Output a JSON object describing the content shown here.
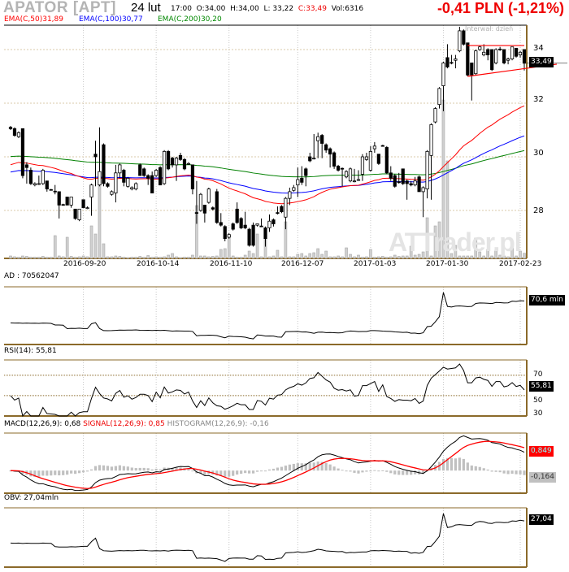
{
  "header": {
    "ticker": "APATOR [APT]",
    "date": "24 lut",
    "time": "17:00",
    "open": "O:34,00",
    "high": "H:34,00",
    "low": "L: 33,22",
    "close": "C:33,49",
    "volume": "Vol:6316",
    "change": "-0,41 PLN (-1,21%)",
    "interval": "Interwał: dzień"
  },
  "legend": {
    "ema50": "EMA(C,50)31,89",
    "ema100": "EMA(C,100)30,77",
    "ema200": "EMA(C,200)30,20"
  },
  "colors": {
    "ema50": "#ff0000",
    "ema100": "#0000ff",
    "ema200": "#008000",
    "border": "#8b6a2a",
    "grid": "#d8c8a8",
    "volume": "#d0d0d0"
  },
  "watermark": "ATTrader.pl",
  "chart_data": {
    "type": "candlestick",
    "title": "APATOR [APT]",
    "y_ticks": [
      "34",
      "32",
      "30",
      "28"
    ],
    "y_tick_values": [
      34,
      32,
      30,
      28
    ],
    "x_ticks": [
      "2016-09-20",
      "2016-10-14",
      "2016-11-10",
      "2016-12-07",
      "2017-01-03",
      "2017-01-30",
      "2017-02-23"
    ],
    "x_tick_indices": [
      18,
      36,
      54,
      71,
      89,
      107,
      126
    ],
    "last_price_label": "33,49",
    "last_price": 33.49,
    "ohlc": [
      [
        31.1,
        31.15,
        31.0,
        31.05
      ],
      [
        31.05,
        31.1,
        30.75,
        30.8
      ],
      [
        30.75,
        30.95,
        30.7,
        30.9
      ],
      [
        31.05,
        31.05,
        29.2,
        29.3
      ],
      [
        29.7,
        29.8,
        29.0,
        29.6
      ],
      [
        29.5,
        29.6,
        28.95,
        29.0
      ],
      [
        28.95,
        29.05,
        28.9,
        29.0
      ],
      [
        29.0,
        29.3,
        28.95,
        29.0
      ],
      [
        29.0,
        29.55,
        28.95,
        29.5
      ],
      [
        29.1,
        29.1,
        28.7,
        28.8
      ],
      [
        28.78,
        28.8,
        28.75,
        28.75
      ],
      [
        28.72,
        28.95,
        28.6,
        28.7
      ],
      [
        28.7,
        28.7,
        27.7,
        28.2
      ],
      [
        28.22,
        28.25,
        28.2,
        28.2
      ],
      [
        28.5,
        28.5,
        28.2,
        28.2
      ],
      [
        28.2,
        28.5,
        28.1,
        28.5
      ],
      [
        28.05,
        28.05,
        27.65,
        27.7
      ],
      [
        27.65,
        28.05,
        27.6,
        28.05
      ],
      [
        28.4,
        28.4,
        28.1,
        28.1
      ],
      [
        28.1,
        28.15,
        28.05,
        28.1
      ],
      [
        28.5,
        29.0,
        27.8,
        28.95
      ],
      [
        30.1,
        30.6,
        28.9,
        30.0
      ],
      [
        28.95,
        31.1,
        28.9,
        29.45
      ],
      [
        30.45,
        30.5,
        28.9,
        29.0
      ],
      [
        29.0,
        29.05,
        28.85,
        28.9
      ],
      [
        28.6,
        28.75,
        28.55,
        28.7
      ],
      [
        28.65,
        29.7,
        28.3,
        29.4
      ],
      [
        29.4,
        29.75,
        29.2,
        29.7
      ],
      [
        29.5,
        29.55,
        28.9,
        29.05
      ],
      [
        28.9,
        29.25,
        28.85,
        29.2
      ],
      [
        28.8,
        28.9,
        28.75,
        28.85
      ],
      [
        28.8,
        29.05,
        28.75,
        29.0
      ],
      [
        29.7,
        29.75,
        29.3,
        29.3
      ],
      [
        29.55,
        29.6,
        29.25,
        29.3
      ],
      [
        29.3,
        29.35,
        28.95,
        29.2
      ],
      [
        29.3,
        29.45,
        28.65,
        28.65
      ],
      [
        29.3,
        29.55,
        29.25,
        29.5
      ],
      [
        29.6,
        29.65,
        28.95,
        28.95
      ],
      [
        29.0,
        30.25,
        28.95,
        30.2
      ],
      [
        30.2,
        30.25,
        29.5,
        29.55
      ],
      [
        29.95,
        30.0,
        29.6,
        29.7
      ],
      [
        29.7,
        30.0,
        29.1,
        29.95
      ],
      [
        30.05,
        30.15,
        29.85,
        29.9
      ],
      [
        29.9,
        29.95,
        29.5,
        29.55
      ],
      [
        29.75,
        29.8,
        29.7,
        29.75
      ],
      [
        29.7,
        29.7,
        28.6,
        28.8
      ],
      [
        27.92,
        29.1,
        27.5,
        27.9
      ],
      [
        28.0,
        28.65,
        27.95,
        28.6
      ],
      [
        28.2,
        28.2,
        27.55,
        27.9
      ],
      [
        28.3,
        28.85,
        28.25,
        28.8
      ],
      [
        28.1,
        28.15,
        28.0,
        28.05
      ],
      [
        28.7,
        28.8,
        27.5,
        27.55
      ],
      [
        27.55,
        27.9,
        27.4,
        27.45
      ],
      [
        27.4,
        27.45,
        26.85,
        26.95
      ],
      [
        27.0,
        27.15,
        26.95,
        27.1
      ],
      [
        27.5,
        27.55,
        27.25,
        27.3
      ],
      [
        28.05,
        28.3,
        27.5,
        27.55
      ],
      [
        27.7,
        27.75,
        27.3,
        27.35
      ],
      [
        27.45,
        27.95,
        27.3,
        27.35
      ],
      [
        27.3,
        27.35,
        26.65,
        26.7
      ],
      [
        27.45,
        27.55,
        26.65,
        26.7
      ],
      [
        27.45,
        27.5,
        27.4,
        27.5
      ],
      [
        27.42,
        27.7,
        27.4,
        27.4
      ],
      [
        27.35,
        27.4,
        26.65,
        26.95
      ],
      [
        27.35,
        27.85,
        27.2,
        27.6
      ],
      [
        27.65,
        27.7,
        27.4,
        27.5
      ],
      [
        27.92,
        28.15,
        27.85,
        27.9
      ],
      [
        28.15,
        28.2,
        27.9,
        27.95
      ],
      [
        27.75,
        28.5,
        27.3,
        28.45
      ],
      [
        28.45,
        28.85,
        28.2,
        28.7
      ],
      [
        28.75,
        28.95,
        28.7,
        28.85
      ],
      [
        28.95,
        29.6,
        28.5,
        29.15
      ],
      [
        29.2,
        29.65,
        28.95,
        29.05
      ],
      [
        29.55,
        29.6,
        28.9,
        29.3
      ],
      [
        30.0,
        30.15,
        29.8,
        29.85
      ],
      [
        29.95,
        30.85,
        29.9,
        29.95
      ],
      [
        30.6,
        30.9,
        29.95,
        30.75
      ],
      [
        30.8,
        30.85,
        29.95,
        30.5
      ],
      [
        30.45,
        30.5,
        30.15,
        30.25
      ],
      [
        30.3,
        30.35,
        29.6,
        30.1
      ],
      [
        30.15,
        30.2,
        29.55,
        29.65
      ],
      [
        29.65,
        29.7,
        29.45,
        29.5
      ],
      [
        29.57,
        29.6,
        28.9,
        29.55
      ],
      [
        29.25,
        29.5,
        29.2,
        29.45
      ],
      [
        29.1,
        29.6,
        29.05,
        29.55
      ],
      [
        29.1,
        29.55,
        29.05,
        29.1
      ],
      [
        29.15,
        29.5,
        29.1,
        29.15
      ],
      [
        29.35,
        30.1,
        29.1,
        30.0
      ],
      [
        29.9,
        30.15,
        29.85,
        30.0
      ],
      [
        29.5,
        30.4,
        29.45,
        30.2
      ],
      [
        30.3,
        30.55,
        30.15,
        30.4
      ],
      [
        30.1,
        30.1,
        29.7,
        29.75
      ],
      [
        30.42,
        30.45,
        30.4,
        30.4
      ],
      [
        30.35,
        30.4,
        29.35,
        29.4
      ],
      [
        29.4,
        29.65,
        29.1,
        29.2
      ],
      [
        29.3,
        29.35,
        28.85,
        28.9
      ],
      [
        29.07,
        29.4,
        29.0,
        29.05
      ],
      [
        29.55,
        29.55,
        28.95,
        29.0
      ],
      [
        29.1,
        29.15,
        28.4,
        29.0
      ],
      [
        29.0,
        29.1,
        28.9,
        28.95
      ],
      [
        28.95,
        29.25,
        28.9,
        29.1
      ],
      [
        29.25,
        29.3,
        28.7,
        28.7
      ],
      [
        28.7,
        28.9,
        27.75,
        28.85
      ],
      [
        28.8,
        30.25,
        28.45,
        30.2
      ],
      [
        30.05,
        31.25,
        28.4,
        31.2
      ],
      [
        31.3,
        31.85,
        31.25,
        31.8
      ],
      [
        31.95,
        32.6,
        31.8,
        32.55
      ],
      [
        32.65,
        33.55,
        31.7,
        33.5
      ],
      [
        33.7,
        34.2,
        33.3,
        33.35
      ],
      [
        33.52,
        33.8,
        33.45,
        33.5
      ],
      [
        33.6,
        33.8,
        33.3,
        33.65
      ],
      [
        33.95,
        34.85,
        33.9,
        34.7
      ],
      [
        34.7,
        34.75,
        34.15,
        34.2
      ],
      [
        34.25,
        34.25,
        33.0,
        33.05
      ],
      [
        33.5,
        33.5,
        32.1,
        33.05
      ],
      [
        33.1,
        34.0,
        33.05,
        33.95
      ],
      [
        34.0,
        34.15,
        33.95,
        34.1
      ],
      [
        33.8,
        34.2,
        33.75,
        33.9
      ],
      [
        34.0,
        34.05,
        33.6,
        33.8
      ],
      [
        34.0,
        34.0,
        33.2,
        33.25
      ],
      [
        33.5,
        34.05,
        33.45,
        34.0
      ],
      [
        34.02,
        34.1,
        33.95,
        34.0
      ],
      [
        34.0,
        34.0,
        33.45,
        33.5
      ],
      [
        33.6,
        33.7,
        33.45,
        33.65
      ],
      [
        33.65,
        34.1,
        33.6,
        34.1
      ],
      [
        34.05,
        34.05,
        33.7,
        33.75
      ],
      [
        33.8,
        33.95,
        33.7,
        33.9
      ],
      [
        34.0,
        34.0,
        33.22,
        33.49
      ]
    ],
    "volume": [
      3000,
      2000,
      1500,
      3000,
      2500,
      1500,
      1500,
      1500,
      2500,
      1500,
      1500,
      28000,
      3000,
      2000,
      26000,
      2500,
      1500,
      2000,
      3000,
      2000,
      40000,
      30000,
      90000,
      18000,
      2000,
      2000,
      3000,
      2500,
      1500,
      1000,
      1500,
      1500,
      2500,
      1500,
      3500,
      1500,
      2000,
      1500,
      2000,
      4000,
      6000,
      2000,
      1000,
      1500,
      1500,
      4000,
      65000,
      3000,
      3000,
      2000,
      2500,
      3000,
      11000,
      12000,
      25000,
      3000,
      1500,
      1500,
      4000,
      9000,
      6000,
      30000,
      2000,
      30000,
      2000,
      3000,
      10000,
      2000,
      45000,
      2000,
      2000,
      5000,
      6000,
      3000,
      6000,
      7000,
      12000,
      5000,
      9000,
      2000,
      2000,
      3000,
      2000,
      13000,
      5000,
      2000,
      4000,
      1500,
      2000,
      11000,
      1500,
      2000,
      2500,
      1500,
      2000,
      4000,
      2500,
      3000,
      3000,
      15000,
      4000,
      5000,
      8000,
      50000,
      3000,
      40000,
      45000,
      195000,
      120000,
      6000,
      16000,
      3000,
      3000,
      3000,
      3000,
      25000,
      8000,
      3000,
      11000,
      3000,
      10000,
      4000,
      3000,
      2000,
      13000,
      3000,
      9000,
      6316
    ],
    "ema_start": {
      "ema50": 29.65,
      "ema100": 29.4,
      "ema200": 30.0
    },
    "ema_last": {
      "ema50": 31.89,
      "ema100": 30.77,
      "ema200": 30.2
    },
    "trendlines": [
      {
        "from_index": 113,
        "to_index": 127,
        "from": 34.15,
        "to": 34.15
      },
      {
        "from_index": 113,
        "to_index": 127,
        "from": 33.0,
        "to": 33.42
      }
    ],
    "indicators": {
      "ad": {
        "label": "AD : 70562047",
        "value_box": "70,6 mln"
      },
      "rsi": {
        "label": "RSI(14): 55,81",
        "value_box": "55,81",
        "levels": [
          "70",
          "50",
          "30"
        ],
        "level_values": [
          70,
          50,
          30
        ],
        "ylim": [
          30,
          85
        ]
      },
      "macd": {
        "label_macd": "MACD(12,26,9): 0,68",
        "label_signal": "SIGNAL(12,26,9): 0,85",
        "label_hist": "HISTOGRAM(12,26,9): -0,16",
        "signal_box": "0,849",
        "hist_box": "-0,164"
      },
      "obv": {
        "label": "OBV: 27,04mln",
        "value_box": "27,04"
      }
    }
  }
}
